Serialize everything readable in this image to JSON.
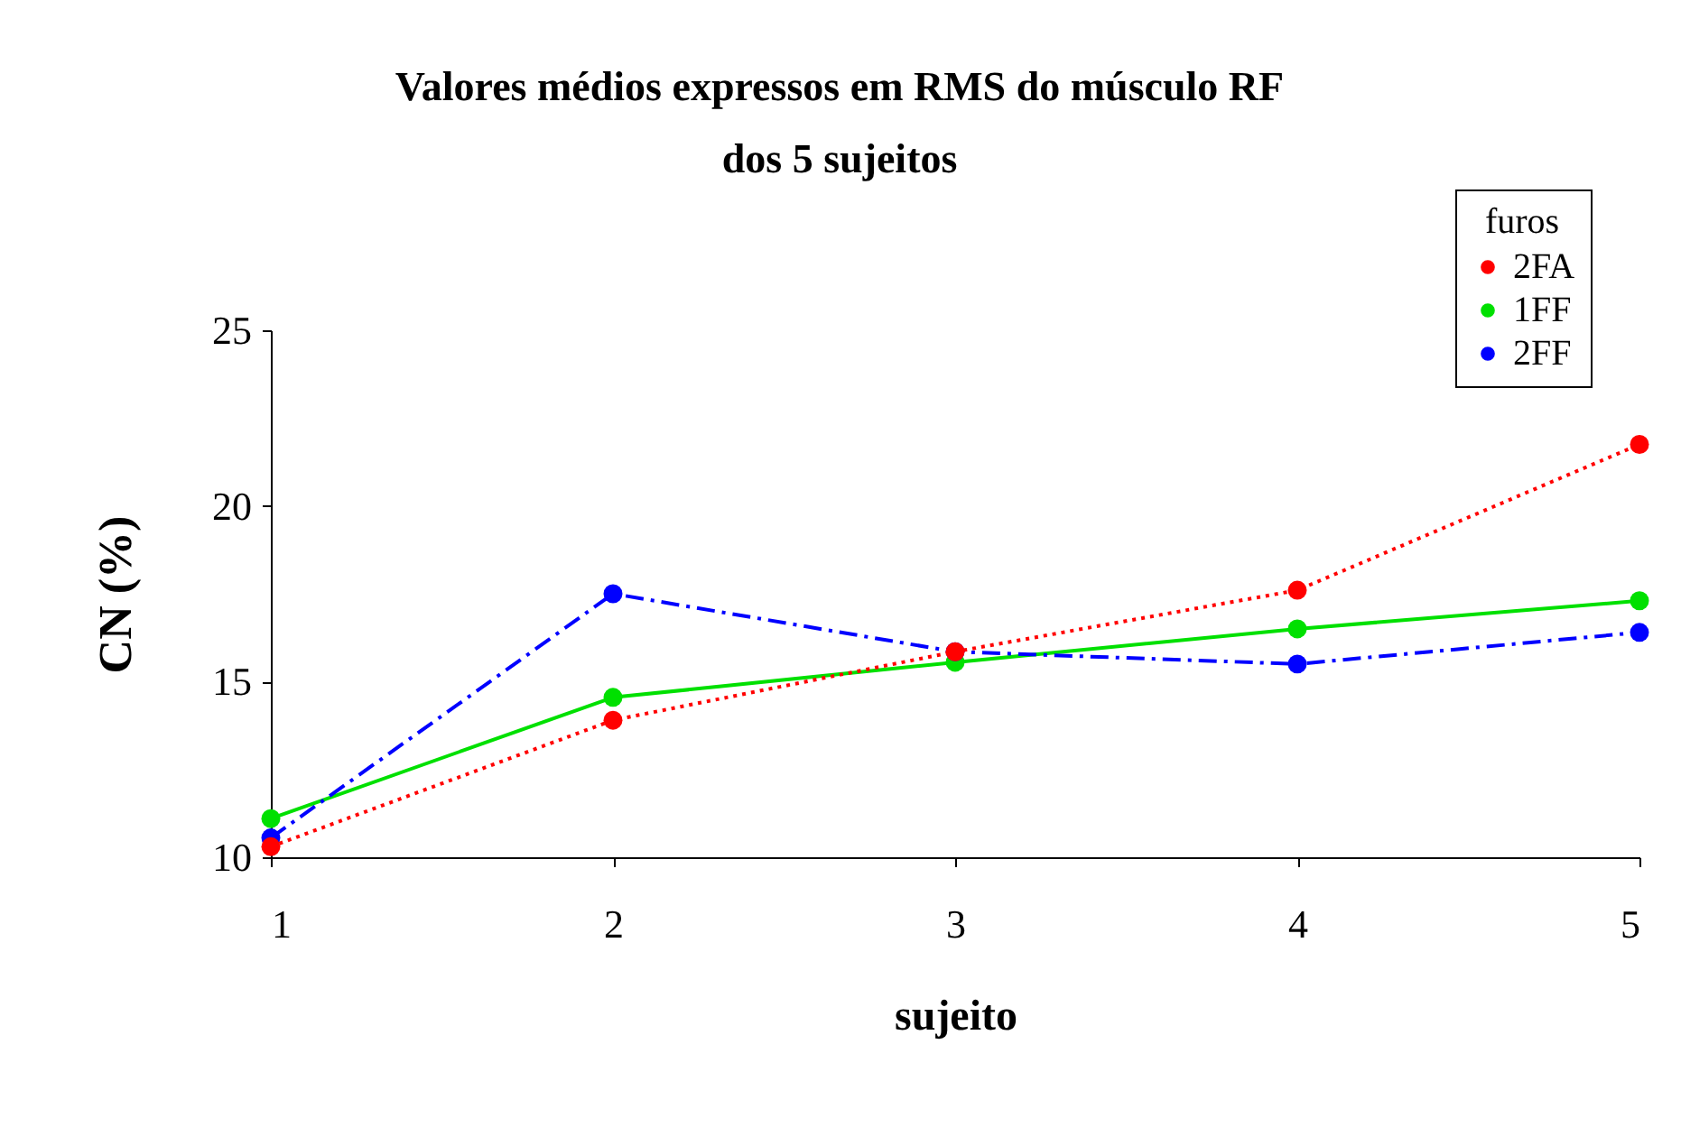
{
  "chart_data": {
    "type": "line",
    "title": "Valores médios expressos em RMS do músculo RF\ndos 5 sujeitos",
    "xlabel": "sujeito",
    "ylabel": "CN (%)",
    "legend_title": "furos",
    "legend": "top right",
    "marker": "circle",
    "x": [
      1,
      2,
      3,
      4,
      5
    ],
    "xlim": [
      1,
      5
    ],
    "xticks": [
      1,
      2,
      3,
      4,
      5
    ],
    "ylim": [
      10,
      25
    ],
    "yticks": [
      10,
      15,
      20,
      25
    ],
    "series": [
      {
        "name": "2FA",
        "color": "#ff0000",
        "line_style": "dotted",
        "values": [
          10.3,
          13.9,
          15.85,
          17.6,
          21.75
        ]
      },
      {
        "name": "1FF",
        "color": "#00e000",
        "line_style": "solid",
        "values": [
          11.1,
          14.55,
          15.55,
          16.5,
          17.3
        ]
      },
      {
        "name": "2FF",
        "color": "#0000ff",
        "line_style": "dashed",
        "values": [
          10.55,
          17.5,
          15.85,
          15.5,
          16.4
        ]
      }
    ]
  }
}
